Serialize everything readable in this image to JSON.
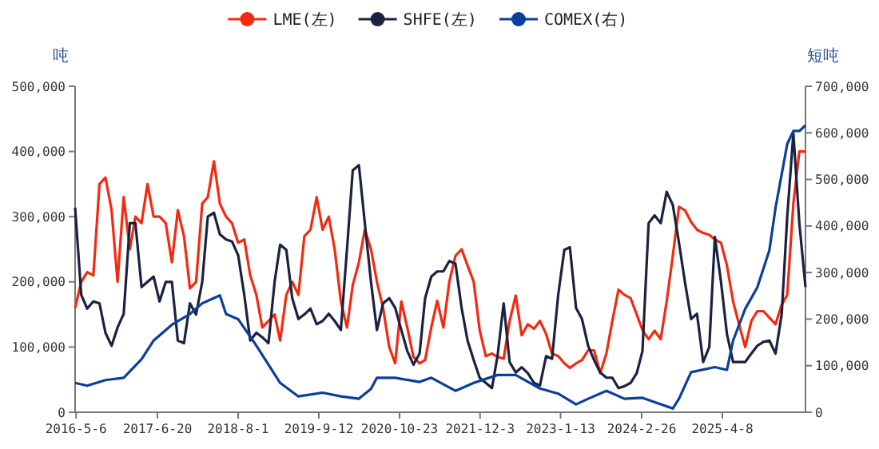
{
  "chart_data": {
    "type": "line",
    "ylabel": "吨",
    "y2label": "短吨",
    "legend": "top",
    "marker": "none",
    "line_style": "solid",
    "grid": false,
    "x": [
      "2016-05",
      "2016-06",
      "2016-07",
      "2016-08",
      "2016-09",
      "2016-10",
      "2016-11",
      "2016-12",
      "2017-01",
      "2017-02",
      "2017-03",
      "2017-04",
      "2017-05",
      "2017-06",
      "2017-07",
      "2017-08",
      "2017-09",
      "2017-10",
      "2017-11",
      "2017-12",
      "2018-01",
      "2018-02",
      "2018-03",
      "2018-04",
      "2018-05",
      "2018-06",
      "2018-07",
      "2018-08",
      "2018-09",
      "2018-10",
      "2018-11",
      "2018-12",
      "2019-01",
      "2019-02",
      "2019-03",
      "2019-04",
      "2019-05",
      "2019-06",
      "2019-07",
      "2019-08",
      "2019-09",
      "2019-10",
      "2019-11",
      "2019-12",
      "2020-01",
      "2020-02",
      "2020-03",
      "2020-04",
      "2020-05",
      "2020-06",
      "2020-07",
      "2020-08",
      "2020-09",
      "2020-10",
      "2020-11",
      "2020-12",
      "2021-01",
      "2021-02",
      "2021-03",
      "2021-04",
      "2021-05",
      "2021-06",
      "2021-07",
      "2021-08",
      "2021-09",
      "2021-10",
      "2021-11",
      "2021-12",
      "2022-01",
      "2022-02",
      "2022-03",
      "2022-04",
      "2022-05",
      "2022-06",
      "2022-07",
      "2022-08",
      "2022-09",
      "2022-10",
      "2022-11",
      "2022-12",
      "2023-01",
      "2023-02",
      "2023-03",
      "2023-04",
      "2023-05",
      "2023-06",
      "2023-07",
      "2023-08",
      "2023-09",
      "2023-10",
      "2023-11",
      "2023-12",
      "2024-01",
      "2024-02",
      "2024-03",
      "2024-04",
      "2024-05",
      "2024-06",
      "2024-07",
      "2024-08",
      "2024-09",
      "2024-10",
      "2024-11",
      "2024-12",
      "2025-01",
      "2025-02",
      "2025-03",
      "2025-04",
      "2025-05",
      "2025-06",
      "2025-07",
      "2025-08",
      "2025-09",
      "2025-10",
      "2025-11",
      "2025-12",
      "2026-01",
      "2026-02",
      "2026-03",
      "2026-04",
      "2026-05",
      "2026-06"
    ],
    "xlim": [
      "2016-05-01",
      "2026-06-01"
    ],
    "xticks": [
      {
        "value": "2016-05-06",
        "label": "2016-5-6"
      },
      {
        "value": "2017-06-20",
        "label": "2017-6-20"
      },
      {
        "value": "2018-08-01",
        "label": "2018-8-1"
      },
      {
        "value": "2019-09-12",
        "label": "2019-9-12"
      },
      {
        "value": "2020-10-23",
        "label": "2020-10-23"
      },
      {
        "value": "2021-12-03",
        "label": "2021-12-3"
      },
      {
        "value": "2023-01-13",
        "label": "2023-1-13"
      },
      {
        "value": "2024-02-26",
        "label": "2024-2-26"
      },
      {
        "value": "2025-04-08",
        "label": "2025-4-8"
      }
    ],
    "ylim": [
      0,
      500000
    ],
    "yticks": [
      0,
      {
        "value": 100000,
        "label": "100,000"
      },
      {
        "value": 200000,
        "label": "200,000"
      },
      {
        "value": 300000,
        "label": "300,000"
      },
      {
        "value": 400000,
        "label": "400,000"
      },
      {
        "value": 500000,
        "label": "500,000"
      }
    ],
    "y2lim": [
      0,
      700000
    ],
    "y2ticks": [
      0,
      {
        "value": 100000,
        "label": "100,000"
      },
      {
        "value": 200000,
        "label": "200,000"
      },
      {
        "value": 300000,
        "label": "300,000"
      },
      {
        "value": 400000,
        "label": "400,000"
      },
      {
        "value": 500000,
        "label": "500,000"
      },
      {
        "value": 600000,
        "label": "600,000"
      },
      {
        "value": 700000,
        "label": "700,000"
      }
    ],
    "series": [
      {
        "name": "LME(左)",
        "color": "#f5290f",
        "values": [
          160000,
          200000,
          215000,
          210000,
          350000,
          360000,
          310000,
          200000,
          330000,
          250000,
          300000,
          290000,
          350000,
          300000,
          300000,
          290000,
          230000,
          310000,
          270000,
          190000,
          200000,
          320000,
          330000,
          385000,
          320000,
          300000,
          290000,
          260000,
          265000,
          210000,
          180000,
          130000,
          140000,
          150000,
          110000,
          180000,
          200000,
          180000,
          270000,
          280000,
          330000,
          280000,
          300000,
          250000,
          170000,
          130000,
          195000,
          230000,
          280000,
          250000,
          200000,
          160000,
          100000,
          75000,
          170000,
          130000,
          85000,
          75000,
          80000,
          130000,
          171000,
          130000,
          200000,
          240000,
          250000,
          225000,
          200000,
          126000,
          86000,
          90000,
          85000,
          82000,
          140000,
          179000,
          118000,
          135000,
          128000,
          140000,
          120000,
          90000,
          86000,
          75000,
          68000,
          75000,
          80000,
          95000,
          95000,
          60000,
          90000,
          140000,
          188000,
          180000,
          175000,
          150000,
          126000,
          112000,
          125000,
          112000,
          170000,
          240000,
          315000,
          310000,
          292000,
          280000,
          275000,
          272000,
          265000,
          260000,
          225000,
          170000,
          135000,
          100000,
          140000,
          155000,
          155000,
          145000,
          135000,
          165000,
          180000,
          320000,
          400000,
          400000
        ]
      },
      {
        "name": "SHFE(左)",
        "color": "#1b2240",
        "values": [
          314000,
          180000,
          159000,
          170000,
          167000,
          122000,
          102000,
          130000,
          151000,
          290000,
          290000,
          192000,
          200000,
          208000,
          170000,
          200000,
          200000,
          110000,
          106000,
          167000,
          150000,
          200000,
          300000,
          306000,
          273000,
          265000,
          262000,
          241000,
          180000,
          110000,
          122000,
          115000,
          106000,
          200000,
          257000,
          249000,
          175000,
          143000,
          150000,
          159000,
          135000,
          140000,
          151000,
          140000,
          126000,
          250000,
          371000,
          379000,
          290000,
          200000,
          126000,
          167000,
          175000,
          160000,
          126000,
          94000,
          73000,
          90000,
          175000,
          208000,
          216000,
          216000,
          232000,
          228000,
          160000,
          110000,
          80000,
          53000,
          45000,
          37000,
          86000,
          167000,
          77000,
          61000,
          69000,
          60000,
          45000,
          41000,
          86000,
          82000,
          180000,
          249000,
          253000,
          160000,
          143000,
          102000,
          80000,
          61000,
          53000,
          53000,
          37000,
          40000,
          45000,
          60000,
          94000,
          290000,
          302000,
          290000,
          338000,
          318000,
          260000,
          200000,
          143000,
          151000,
          77000,
          100000,
          269000,
          200000,
          120000,
          77000,
          77000,
          77000,
          90000,
          102000,
          108000,
          110000,
          90000,
          150000,
          300000,
          428000,
          290000,
          192000
        ]
      },
      {
        "name": "COMEX(右)",
        "color": "#0b3f9a",
        "axis": "y2",
        "x": [
          "2016-05",
          "2016-07",
          "2016-10",
          "2017-01",
          "2017-04",
          "2017-06",
          "2017-09",
          "2017-12",
          "2018-02",
          "2018-05",
          "2018-06",
          "2018-08",
          "2018-11",
          "2019-03",
          "2019-06",
          "2019-10",
          "2020-01",
          "2020-04",
          "2020-06",
          "2020-07",
          "2020-10",
          "2021-02",
          "2021-04",
          "2021-08",
          "2021-11",
          "2022-03",
          "2022-06",
          "2022-10",
          "2023-01",
          "2023-04",
          "2023-06",
          "2023-09",
          "2023-12",
          "2024-03",
          "2024-06",
          "2024-08",
          "2024-09",
          "2024-11",
          "2025-03",
          "2025-05",
          "2025-06",
          "2025-08",
          "2025-10",
          "2025-12",
          "2026-01",
          "2026-03",
          "2026-04",
          "2026-05",
          "2026-06"
        ],
        "values": [
          63000,
          57000,
          69000,
          74000,
          114000,
          154000,
          188000,
          211000,
          234000,
          251000,
          211000,
          200000,
          143000,
          63000,
          34000,
          42000,
          34000,
          29000,
          50000,
          74000,
          74000,
          65000,
          74000,
          46000,
          63000,
          80000,
          80000,
          51000,
          40000,
          17000,
          29000,
          46000,
          29000,
          31000,
          17000,
          8000,
          29000,
          86000,
          97000,
          91000,
          154000,
          222000,
          268000,
          348000,
          439000,
          576000,
          604000,
          604000,
          616000
        ]
      }
    ]
  }
}
